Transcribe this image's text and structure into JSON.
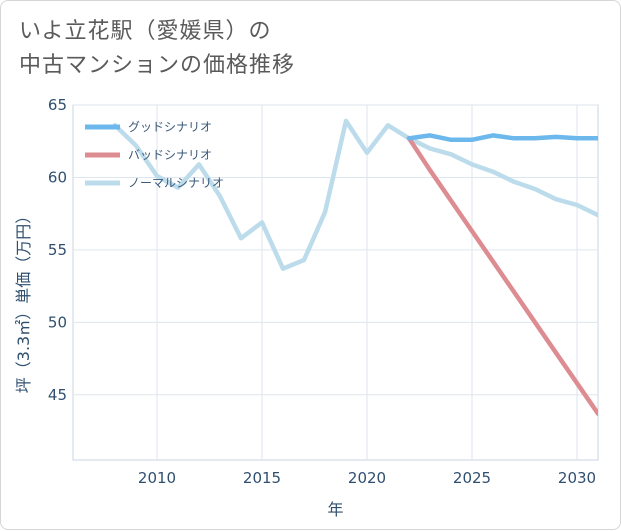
{
  "title": {
    "line1": "いよ立花駅（愛媛県）の",
    "line2": "中古マンションの価格推移"
  },
  "chart_data": {
    "type": "line",
    "xlabel": "年",
    "ylabel": "坪（3.3㎡）単価（万円）",
    "xlim": [
      2006,
      2031
    ],
    "ylim": [
      40.5,
      65
    ],
    "x_ticks": [
      2010,
      2015,
      2020,
      2025,
      2030
    ],
    "y_ticks": [
      45,
      50,
      55,
      60,
      65
    ],
    "grid": true,
    "legend_position": "top-left",
    "series": [
      {
        "name": "グッドシナリオ",
        "color": "#6cb8ec",
        "x": [
          2022,
          2023,
          2024,
          2025,
          2026,
          2027,
          2028,
          2029,
          2030,
          2031
        ],
        "values": [
          62.7,
          62.9,
          62.6,
          62.6,
          62.9,
          62.7,
          62.7,
          62.8,
          62.7,
          62.7
        ]
      },
      {
        "name": "バッドシナリオ",
        "color": "#dd8c92",
        "x": [
          2022,
          2023,
          2024,
          2025,
          2026,
          2027,
          2028,
          2029,
          2030,
          2031
        ],
        "values": [
          62.7,
          60.5,
          58.4,
          56.3,
          54.2,
          52.1,
          50.0,
          47.9,
          45.8,
          43.7
        ]
      },
      {
        "name": "ノーマルシナリオ",
        "color": "#bcdcec",
        "x": [
          2008,
          2009,
          2010,
          2011,
          2012,
          2013,
          2014,
          2015,
          2016,
          2017,
          2018,
          2019,
          2020,
          2021,
          2022,
          2023,
          2024,
          2025,
          2026,
          2027,
          2028,
          2029,
          2030,
          2031
        ],
        "values": [
          63.6,
          62.2,
          60.1,
          59.3,
          60.9,
          58.7,
          55.8,
          56.9,
          53.7,
          54.3,
          57.6,
          63.9,
          61.7,
          63.6,
          62.7,
          62.0,
          61.6,
          60.9,
          60.4,
          59.7,
          59.2,
          58.5,
          58.1,
          57.4
        ]
      }
    ]
  }
}
